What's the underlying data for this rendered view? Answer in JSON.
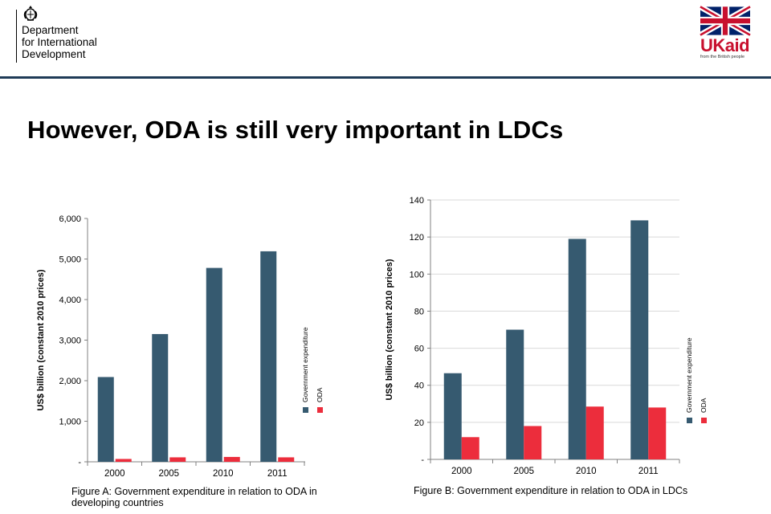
{
  "header": {
    "org_line1": "Department",
    "org_line2": "for International",
    "org_line3": "Development",
    "ukaid_uk": "UK",
    "ukaid_aid": "aid",
    "ukaid_tagline": "from the British people"
  },
  "slide": {
    "title": "However, ODA is still very important in LDCs"
  },
  "captions": {
    "a": "Figure A: Government  expenditure in relation to ODA in developing countries",
    "b": "Figure B: Government  expenditure in relation to ODA in LDCs"
  },
  "colors": {
    "gov": "#365a70",
    "oda": "#ec2d3c",
    "grid": "#d9d9d9",
    "axis": "#808080",
    "header_rule": "#1f3b57"
  },
  "chart_data": [
    {
      "type": "bar",
      "id": "A",
      "categories": [
        "2000",
        "2005",
        "2010",
        "2011"
      ],
      "series": [
        {
          "name": "Government expenditure",
          "values": [
            2090,
            3150,
            4780,
            5190
          ]
        },
        {
          "name": "ODA",
          "values": [
            70,
            110,
            120,
            110
          ]
        }
      ],
      "ylabel": "US$ billion (constant 2010 prices)",
      "ylim": [
        0,
        6000
      ],
      "yticks": [
        "-",
        "1,000",
        "2,000",
        "3,000",
        "4,000",
        "5,000",
        "6,000"
      ],
      "legend_position": "right-vertical",
      "grid": false
    },
    {
      "type": "bar",
      "id": "B",
      "categories": [
        "2000",
        "2005",
        "2010",
        "2011"
      ],
      "series": [
        {
          "name": "Government expenditure",
          "values": [
            46.5,
            70,
            119,
            129
          ]
        },
        {
          "name": "ODA",
          "values": [
            12,
            18,
            28.5,
            28
          ]
        }
      ],
      "ylabel": "US$ billion (constant 2010 prices)",
      "ylim": [
        0,
        140
      ],
      "yticks": [
        "-",
        "20",
        "40",
        "60",
        "80",
        "100",
        "120",
        "140"
      ],
      "legend_position": "right-vertical",
      "grid": true
    }
  ]
}
